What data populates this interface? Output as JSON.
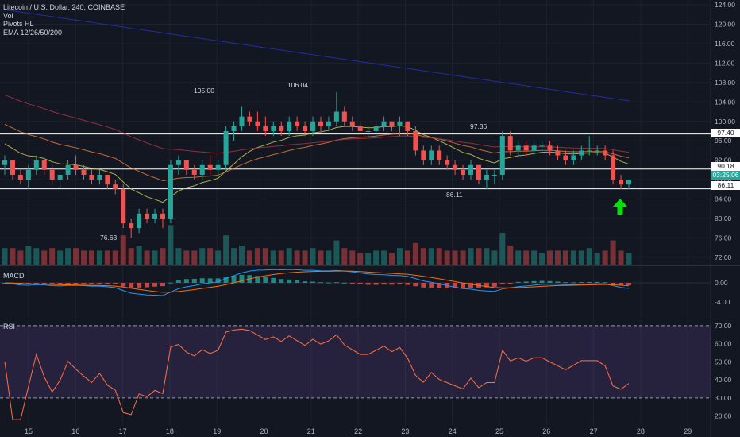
{
  "legend": {
    "symbol": "Litecoin / U.S. Dollar, 240, COINBASE",
    "vol": "Vol",
    "pivots": "Pivots HL",
    "ema": "EMA 12/26/50/200"
  },
  "panes": {
    "macd": "MACD",
    "rsi": "RSI"
  },
  "price_tags": {
    "res": "97.40",
    "mid": "90.18",
    "timer": "03:25:06",
    "sup": "86.11"
  },
  "pivots": {
    "p1": "105.00",
    "p2": "106.04",
    "p3": "97.36",
    "p4": "76.63",
    "p5": "86.11"
  },
  "colors": {
    "up": "#26a69a",
    "down": "#ef5350",
    "bg": "#131722",
    "arrow": "#00e600"
  },
  "chart_data": {
    "type": "candlestick",
    "title": "Litecoin / U.S. Dollar, 240, COINBASE",
    "x_ticks": [
      "15",
      "16",
      "17",
      "18",
      "19",
      "20",
      "21",
      "22",
      "23",
      "24",
      "25",
      "26",
      "27",
      "28",
      "29"
    ],
    "price_ticks": [
      "124.00",
      "120.00",
      "116.00",
      "112.00",
      "108.00",
      "104.00",
      "100.00",
      "96.00",
      "92.00",
      "88.00",
      "84.00",
      "80.00",
      "76.00",
      "72.00"
    ],
    "price_ylim": [
      70.5,
      125
    ],
    "macd_ticks": [
      "0.00",
      "-4.00"
    ],
    "rsi_ticks": [
      "70.00",
      "60.00",
      "50.00",
      "40.00",
      "30.00",
      "20.00"
    ],
    "rsi_ylim": [
      15,
      73
    ],
    "horizontal_levels": [
      97.4,
      90.18,
      86.11
    ],
    "candles": [
      [
        91,
        93,
        89,
        92
      ],
      [
        92,
        92,
        88,
        89
      ],
      [
        89,
        90,
        87,
        88
      ],
      [
        88,
        91,
        86,
        90
      ],
      [
        90,
        93,
        89,
        92
      ],
      [
        92,
        92,
        89,
        90
      ],
      [
        90,
        91,
        87,
        88
      ],
      [
        88,
        89,
        86,
        89
      ],
      [
        89,
        92,
        88,
        91
      ],
      [
        91,
        93,
        89,
        90
      ],
      [
        90,
        91,
        88,
        89
      ],
      [
        89,
        90,
        87,
        88
      ],
      [
        88,
        90,
        87,
        89
      ],
      [
        89,
        89,
        86,
        87
      ],
      [
        87,
        88,
        85,
        86
      ],
      [
        86,
        87,
        78,
        79
      ],
      [
        79,
        80,
        76,
        78
      ],
      [
        78,
        82,
        77,
        81
      ],
      [
        81,
        82,
        79,
        80
      ],
      [
        80,
        82,
        79,
        81
      ],
      [
        81,
        82,
        78,
        80
      ],
      [
        80,
        92,
        79,
        91
      ],
      [
        91,
        93,
        89,
        92
      ],
      [
        92,
        92,
        89,
        90
      ],
      [
        90,
        91,
        88,
        89
      ],
      [
        89,
        92,
        88,
        91
      ],
      [
        91,
        93,
        89,
        90
      ],
      [
        90,
        92,
        89,
        91
      ],
      [
        91,
        99,
        90,
        98
      ],
      [
        98,
        100,
        96,
        99
      ],
      [
        99,
        103,
        98,
        101
      ],
      [
        101,
        102,
        99,
        100
      ],
      [
        100,
        102,
        98,
        99
      ],
      [
        99,
        101,
        97,
        98
      ],
      [
        98,
        100,
        97,
        99
      ],
      [
        99,
        100,
        97,
        98
      ],
      [
        98,
        101,
        97,
        100
      ],
      [
        100,
        101,
        98,
        99
      ],
      [
        99,
        100,
        97,
        98
      ],
      [
        98,
        101,
        97,
        100
      ],
      [
        100,
        101,
        98,
        99
      ],
      [
        99,
        101,
        98,
        100
      ],
      [
        100,
        106,
        99,
        102
      ],
      [
        102,
        103,
        99,
        100
      ],
      [
        100,
        101,
        98,
        99
      ],
      [
        99,
        100,
        98,
        98
      ],
      [
        98,
        99,
        97,
        98
      ],
      [
        98,
        100,
        97,
        99
      ],
      [
        99,
        101,
        98,
        100
      ],
      [
        100,
        100,
        98,
        99
      ],
      [
        99,
        101,
        97,
        100
      ],
      [
        100,
        100,
        97,
        98
      ],
      [
        98,
        99,
        93,
        94
      ],
      [
        94,
        95,
        91,
        92
      ],
      [
        92,
        95,
        91,
        94
      ],
      [
        94,
        95,
        91,
        92
      ],
      [
        92,
        93,
        90,
        91
      ],
      [
        91,
        92,
        89,
        90
      ],
      [
        90,
        91,
        88,
        89
      ],
      [
        89,
        92,
        88,
        91
      ],
      [
        91,
        91,
        87,
        88
      ],
      [
        88,
        90,
        86,
        89
      ],
      [
        89,
        90,
        87,
        89
      ],
      [
        89,
        98,
        88,
        97
      ],
      [
        97,
        98,
        93,
        94
      ],
      [
        94,
        96,
        93,
        95
      ],
      [
        95,
        96,
        93,
        94
      ],
      [
        94,
        96,
        93,
        95
      ],
      [
        95,
        96,
        94,
        95
      ],
      [
        95,
        96,
        93,
        94
      ],
      [
        94,
        95,
        92,
        93
      ],
      [
        93,
        94,
        91,
        92
      ],
      [
        92,
        94,
        91,
        93
      ],
      [
        93,
        95,
        92,
        94
      ],
      [
        94,
        97,
        93,
        94
      ],
      [
        94,
        95,
        93,
        94
      ],
      [
        94,
        95,
        92,
        93
      ],
      [
        93,
        94,
        87,
        88
      ],
      [
        88,
        89,
        86,
        87
      ],
      [
        87,
        88,
        86,
        88
      ]
    ]
  }
}
